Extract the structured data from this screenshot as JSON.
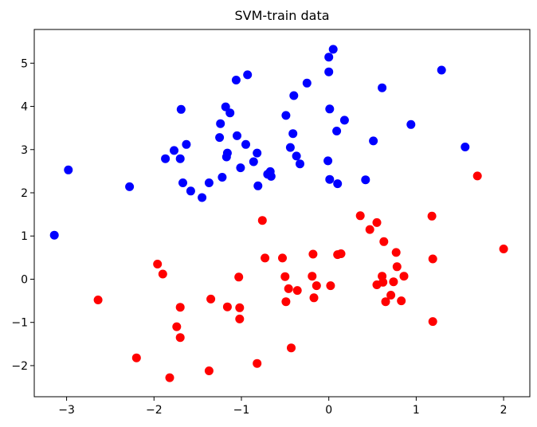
{
  "chart_data": {
    "type": "scatter",
    "title": "SVM-train data",
    "xlabel": "",
    "ylabel": "",
    "xlim": [
      -3.37,
      2.3
    ],
    "ylim": [
      -2.72,
      5.78
    ],
    "xticks": [
      -3,
      -2,
      -1,
      0,
      1,
      2
    ],
    "yticks": [
      -2,
      -1,
      0,
      1,
      2,
      3,
      4,
      5
    ],
    "grid": false,
    "legend": "none",
    "series": [
      {
        "color": "#0000ff",
        "points": [
          [
            -3.14,
            1.02
          ],
          [
            -2.98,
            2.53
          ],
          [
            -2.28,
            2.14
          ],
          [
            -1.87,
            2.79
          ],
          [
            -1.77,
            2.98
          ],
          [
            -1.7,
            2.79
          ],
          [
            -1.69,
            3.93
          ],
          [
            -1.67,
            2.23
          ],
          [
            -1.63,
            3.12
          ],
          [
            -1.58,
            2.04
          ],
          [
            -1.45,
            1.89
          ],
          [
            -1.37,
            2.23
          ],
          [
            -1.25,
            3.28
          ],
          [
            -1.24,
            3.6
          ],
          [
            -1.22,
            2.36
          ],
          [
            -1.18,
            3.99
          ],
          [
            -1.17,
            2.83
          ],
          [
            -1.16,
            2.92
          ],
          [
            -1.13,
            3.85
          ],
          [
            -1.06,
            4.61
          ],
          [
            -1.05,
            3.32
          ],
          [
            -1.01,
            2.58
          ],
          [
            -0.95,
            3.12
          ],
          [
            -0.93,
            4.73
          ],
          [
            -0.86,
            2.72
          ],
          [
            -0.82,
            2.92
          ],
          [
            -0.81,
            2.16
          ],
          [
            -0.7,
            2.43
          ],
          [
            -0.67,
            2.49
          ],
          [
            -0.66,
            2.38
          ],
          [
            -0.49,
            3.79
          ],
          [
            -0.44,
            3.05
          ],
          [
            -0.41,
            3.37
          ],
          [
            -0.4,
            4.25
          ],
          [
            -0.37,
            2.85
          ],
          [
            -0.33,
            2.67
          ],
          [
            -0.25,
            4.54
          ],
          [
            -0.01,
            2.74
          ],
          [
            0.0,
            4.8
          ],
          [
            0.0,
            5.14
          ],
          [
            0.01,
            3.94
          ],
          [
            0.01,
            2.31
          ],
          [
            0.05,
            5.32
          ],
          [
            0.09,
            3.43
          ],
          [
            0.1,
            2.21
          ],
          [
            0.18,
            3.68
          ],
          [
            0.42,
            2.3
          ],
          [
            0.51,
            3.2
          ],
          [
            0.61,
            4.43
          ],
          [
            0.94,
            3.58
          ],
          [
            1.29,
            4.84
          ],
          [
            1.56,
            3.06
          ]
        ]
      },
      {
        "color": "#ff0000",
        "points": [
          [
            -2.64,
            -0.48
          ],
          [
            -2.2,
            -1.82
          ],
          [
            -1.96,
            0.35
          ],
          [
            -1.9,
            0.12
          ],
          [
            -1.82,
            -2.28
          ],
          [
            -1.74,
            -1.1
          ],
          [
            -1.7,
            -0.65
          ],
          [
            -1.7,
            -1.35
          ],
          [
            -1.37,
            -2.12
          ],
          [
            -1.35,
            -0.46
          ],
          [
            -1.16,
            -0.64
          ],
          [
            -1.03,
            0.05
          ],
          [
            -1.02,
            -0.66
          ],
          [
            -1.02,
            -0.92
          ],
          [
            -0.82,
            -1.95
          ],
          [
            -0.76,
            1.36
          ],
          [
            -0.73,
            0.49
          ],
          [
            -0.53,
            0.49
          ],
          [
            -0.5,
            0.06
          ],
          [
            -0.49,
            -0.52
          ],
          [
            -0.46,
            -0.22
          ],
          [
            -0.43,
            -1.59
          ],
          [
            -0.36,
            -0.26
          ],
          [
            -0.19,
            0.07
          ],
          [
            -0.18,
            0.58
          ],
          [
            -0.17,
            -0.43
          ],
          [
            -0.14,
            -0.15
          ],
          [
            0.02,
            -0.15
          ],
          [
            0.1,
            0.57
          ],
          [
            0.14,
            0.59
          ],
          [
            0.36,
            1.47
          ],
          [
            0.47,
            1.15
          ],
          [
            0.55,
            1.31
          ],
          [
            0.55,
            -0.13
          ],
          [
            0.61,
            0.07
          ],
          [
            0.62,
            -0.07
          ],
          [
            0.63,
            0.87
          ],
          [
            0.65,
            -0.52
          ],
          [
            0.71,
            -0.37
          ],
          [
            0.74,
            -0.06
          ],
          [
            0.77,
            0.62
          ],
          [
            0.78,
            0.29
          ],
          [
            0.83,
            -0.5
          ],
          [
            0.86,
            0.07
          ],
          [
            1.18,
            1.46
          ],
          [
            1.19,
            0.47
          ],
          [
            1.19,
            -0.98
          ],
          [
            1.7,
            2.39
          ],
          [
            2.0,
            0.7
          ]
        ]
      }
    ]
  }
}
